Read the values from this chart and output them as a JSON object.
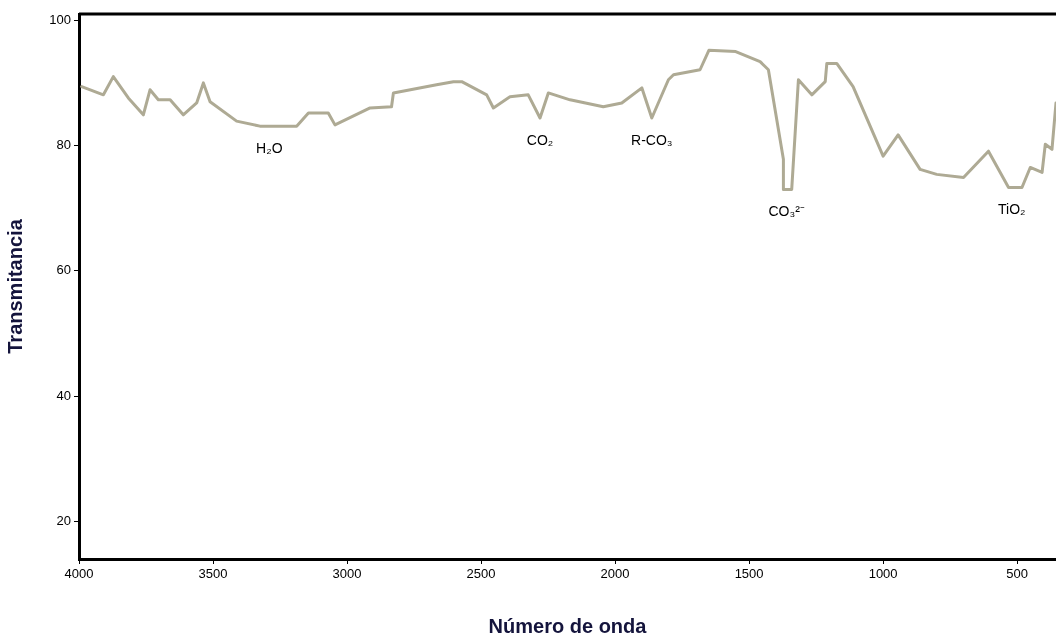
{
  "chart_data": {
    "type": "line",
    "xlabel": "Número de onda",
    "ylabel": "Transmitancia",
    "xlim": [
      4000,
      355
    ],
    "ylim": [
      14,
      101
    ],
    "xticks": [
      4000,
      3500,
      3000,
      2500,
      2000,
      1500,
      1000,
      500
    ],
    "yticks": [
      20,
      40,
      60,
      80,
      100
    ],
    "grid": false,
    "marker": "none",
    "x": [
      3990,
      3909,
      3872,
      3816,
      3760,
      3735,
      3704,
      3660,
      3611,
      3561,
      3536,
      3511,
      3412,
      3325,
      3188,
      3144,
      3070,
      3045,
      2914,
      2834,
      2827,
      2666,
      2603,
      2572,
      2479,
      2454,
      2392,
      2324,
      2280,
      2249,
      2168,
      2044,
      1975,
      1900,
      1863,
      1801,
      1782,
      1683,
      1650,
      1550,
      1459,
      1428,
      1372,
      1372,
      1341,
      1316,
      1266,
      1216,
      1210,
      1173,
      1112,
      1000,
      944,
      862,
      800,
      700,
      607,
      532,
      482,
      451,
      407,
      395,
      370,
      355
    ],
    "series": [
      {
        "color": "#aeaa94",
        "values": [
          89.4,
          88.1,
          91.0,
          87.6,
          84.9,
          88.9,
          87.3,
          87.3,
          84.9,
          86.8,
          90.0,
          87.0,
          83.9,
          83.1,
          83.1,
          85.2,
          85.2,
          83.3,
          86.0,
          86.2,
          88.4,
          89.7,
          90.2,
          90.2,
          88.1,
          86.0,
          87.8,
          88.1,
          84.4,
          88.4,
          87.3,
          86.2,
          86.8,
          89.2,
          84.4,
          90.5,
          91.3,
          92.1,
          95.2,
          95.0,
          93.4,
          92.1,
          77.8,
          73.0,
          73.0,
          90.5,
          88.1,
          90.2,
          93.1,
          93.1,
          89.4,
          78.3,
          81.7,
          76.2,
          75.4,
          74.9,
          79.1,
          73.3,
          73.3,
          76.5,
          75.7,
          80.2,
          79.4,
          86.8
        ]
      }
    ],
    "annotations": [
      {
        "text": "H₂O",
        "x": 3290,
        "y": 83.1
      },
      {
        "text": "CO₂",
        "x": 2280,
        "y": 84.4
      },
      {
        "text": "R-CO₃",
        "x": 1863,
        "y": 84.4
      },
      {
        "text": "CO₃²⁻",
        "x": 1360,
        "y": 73.0
      },
      {
        "text": "TiO₂",
        "x": 520,
        "y": 73.3
      }
    ]
  }
}
